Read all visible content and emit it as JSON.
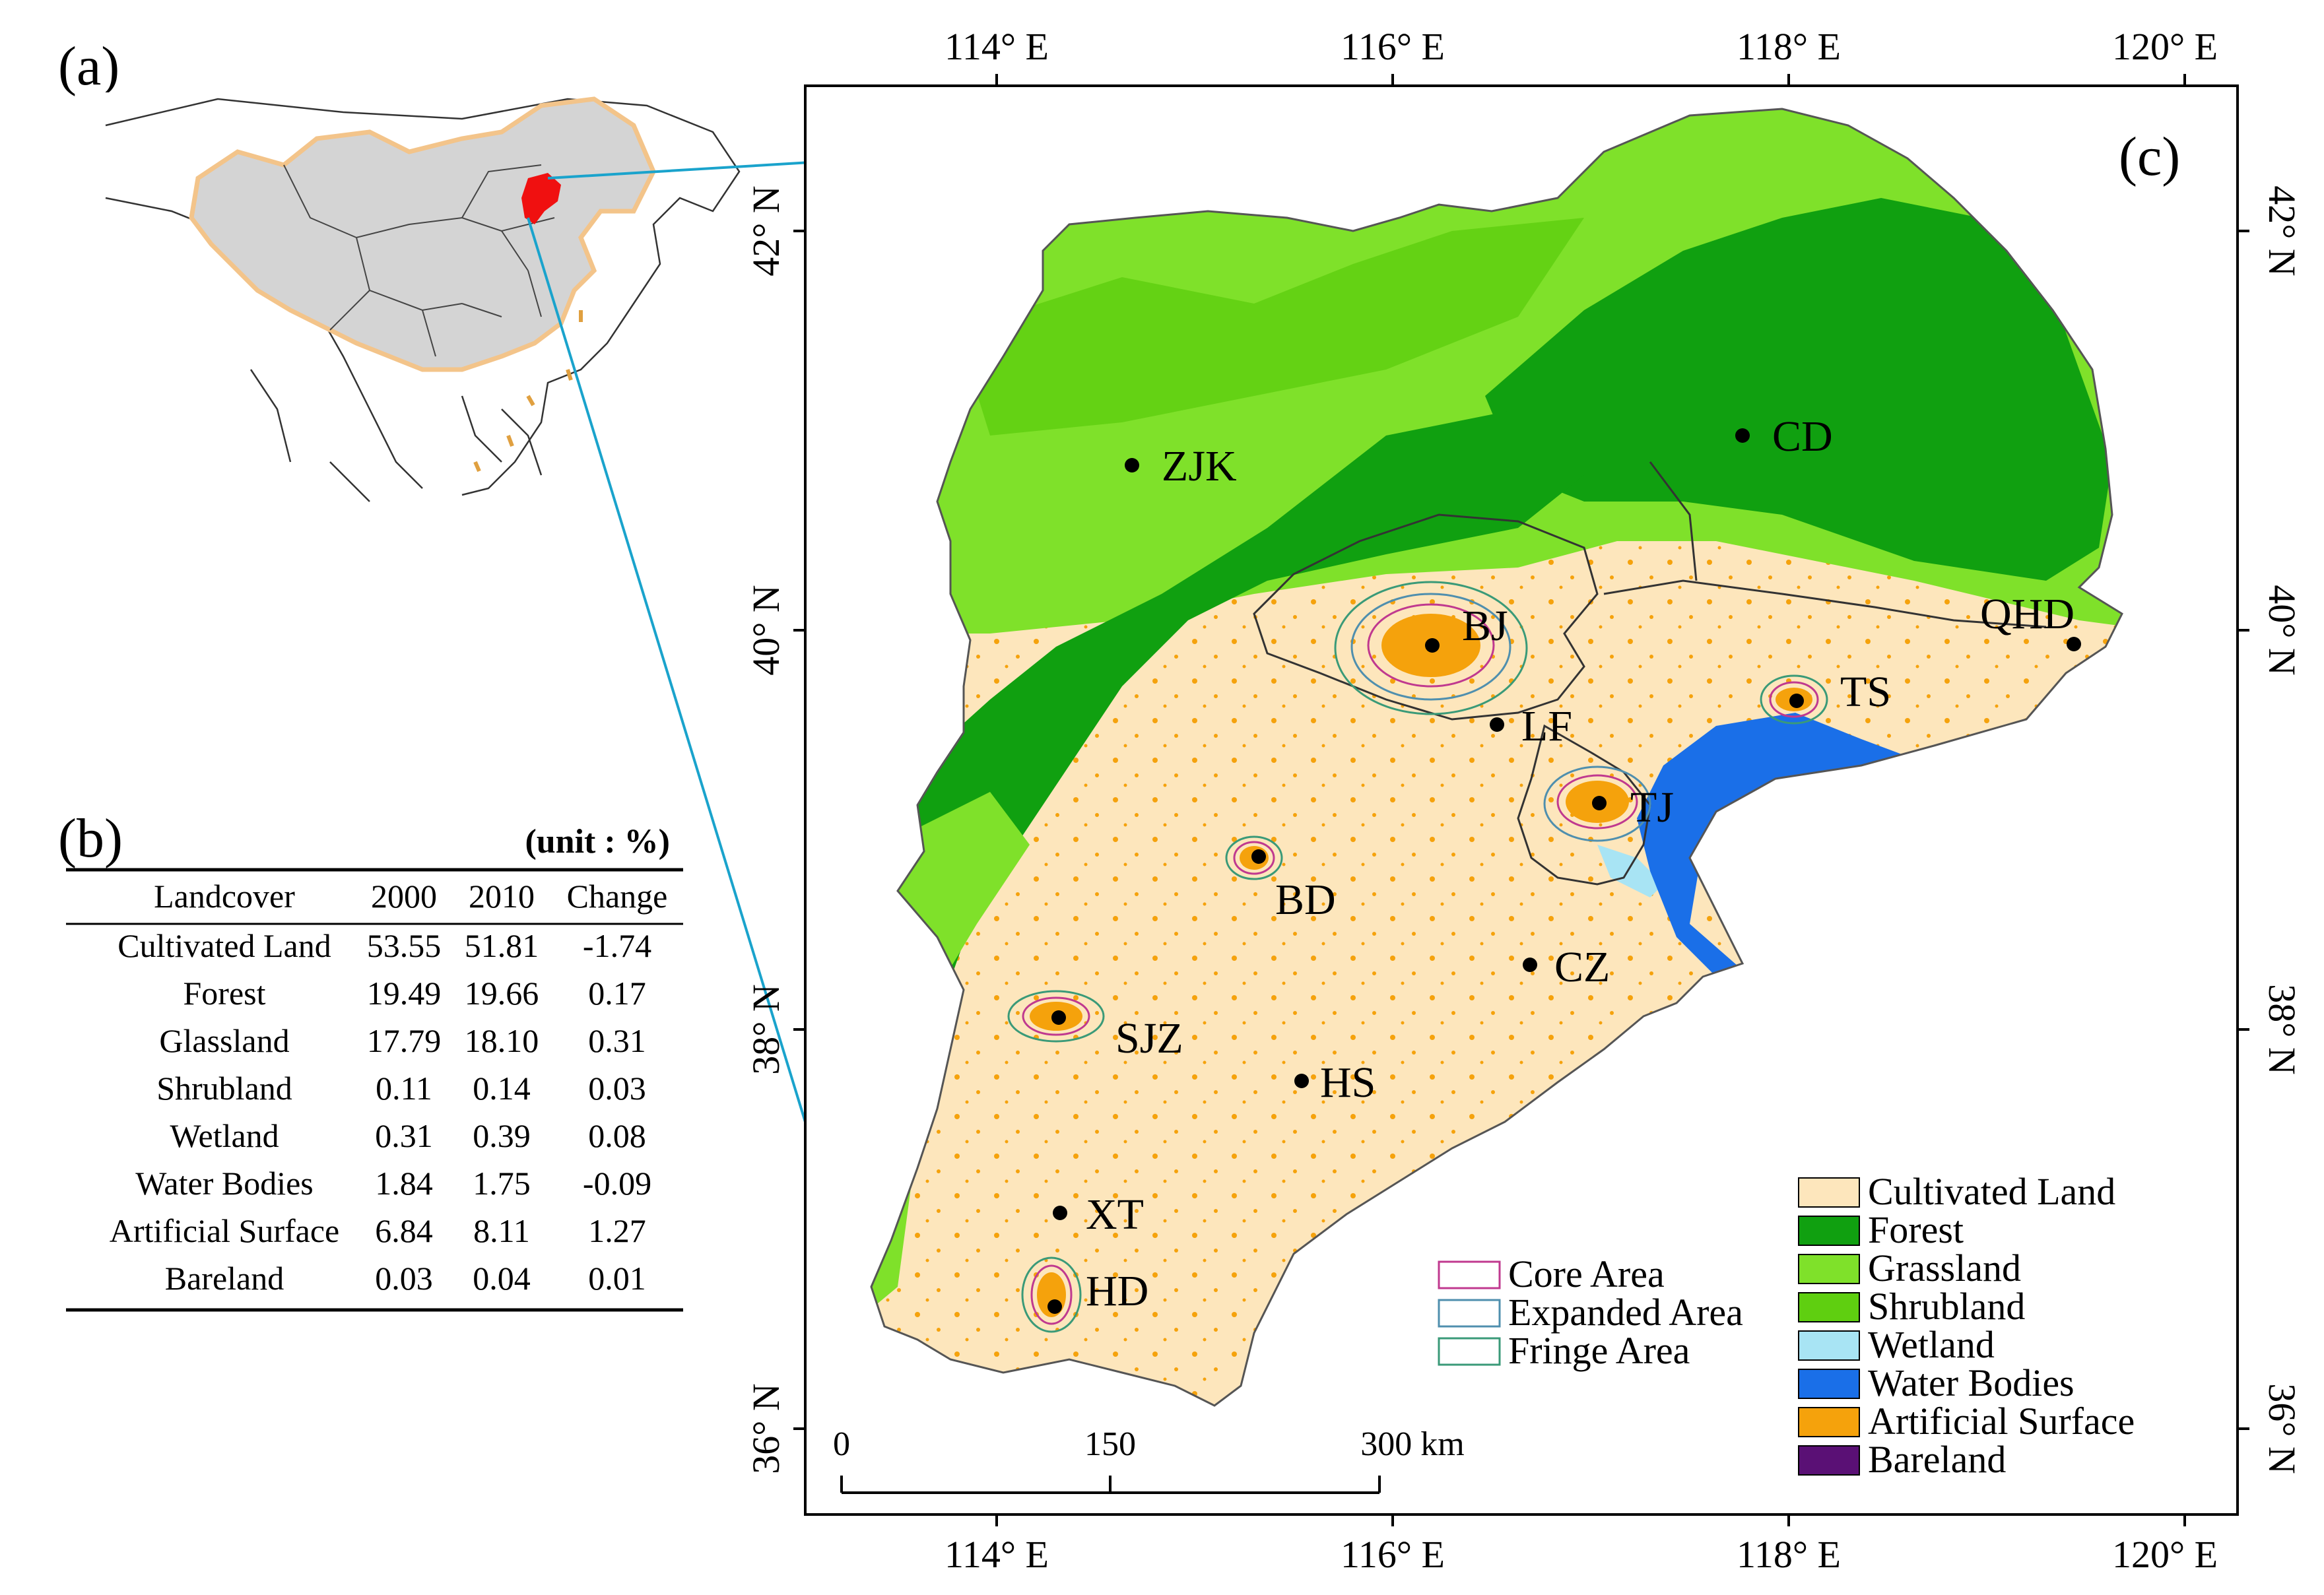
{
  "panel_labels": {
    "a": "(a)",
    "b": "(b)",
    "c": "(c)"
  },
  "top_lon_labels": [
    "114° E",
    "116° E",
    "118° E",
    "120° E"
  ],
  "bottom_lon_labels": [
    "114° E",
    "116° E",
    "118° E",
    "120° E"
  ],
  "left_lat_labels": [
    "42° N",
    "40° N",
    "38° N",
    "36° N"
  ],
  "right_lat_labels": [
    "42° N",
    "40° N",
    "38° N",
    "36° N"
  ],
  "cities": [
    {
      "code": "ZJK"
    },
    {
      "code": "CD"
    },
    {
      "code": "BJ"
    },
    {
      "code": "QHD"
    },
    {
      "code": "TS"
    },
    {
      "code": "LF"
    },
    {
      "code": "TJ"
    },
    {
      "code": "BD"
    },
    {
      "code": "CZ"
    },
    {
      "code": "SJZ"
    },
    {
      "code": "HS"
    },
    {
      "code": "XT"
    },
    {
      "code": "HD"
    }
  ],
  "scale_bar": {
    "labels": [
      "0",
      "150",
      "300 km"
    ]
  },
  "area_legend": [
    {
      "label": "Core Area",
      "color": "#c0398f"
    },
    {
      "label": "Expanded Area",
      "color": "#4f8fae"
    },
    {
      "label": "Fringe Area",
      "color": "#3a9a78"
    }
  ],
  "landcover_legend": [
    {
      "label": "Cultivated Land",
      "color": "#fde6bc"
    },
    {
      "label": "Forest",
      "color": "#10a010"
    },
    {
      "label": "Grassland",
      "color": "#7fe12a"
    },
    {
      "label": "Shrubland",
      "color": "#5fcf10"
    },
    {
      "label": "Wetland",
      "color": "#a8e4f4"
    },
    {
      "label": "Water Bodies",
      "color": "#1a6fe8"
    },
    {
      "label": "Artificial Surface",
      "color": "#f5a20c"
    },
    {
      "label": "Bareland",
      "color": "#5a1075"
    }
  ],
  "table": {
    "unit": "(unit : %)",
    "headers": [
      "Landcover",
      "2000",
      "2010",
      "Change"
    ],
    "rows": [
      [
        "Cultivated Land",
        "53.55",
        "51.81",
        "-1.74"
      ],
      [
        "Forest",
        "19.49",
        "19.66",
        "0.17"
      ],
      [
        "Glassland",
        "17.79",
        "18.10",
        "0.31"
      ],
      [
        "Shrubland",
        "0.11",
        "0.14",
        "0.03"
      ],
      [
        "Wetland",
        "0.31",
        "0.39",
        "0.08"
      ],
      [
        "Water Bodies",
        "1.84",
        "1.75",
        "-0.09"
      ],
      [
        "Artificial Surface",
        "6.84",
        "8.11",
        "1.27"
      ],
      [
        "Bareland",
        "0.03",
        "0.04",
        "0.01"
      ]
    ]
  }
}
